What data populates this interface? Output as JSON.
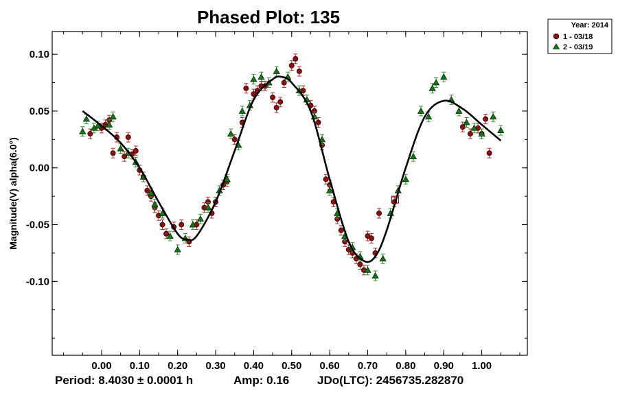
{
  "chart_data": {
    "type": "scatter",
    "title": "Phased Plot: 135",
    "xlabel": "",
    "ylabel": "Magnitude(V) alpha(6.0°)",
    "xlim": [
      -0.13,
      1.12
    ],
    "ylim": [
      0.12,
      -0.165
    ],
    "x_ticks": [
      0.0,
      0.1,
      0.2,
      0.3,
      0.4,
      0.5,
      0.6,
      0.7,
      0.8,
      0.9,
      1.0
    ],
    "x_tick_labels": [
      "0.00",
      "0.10",
      "0.20",
      "0.30",
      "0.40",
      "0.50",
      "0.60",
      "0.70",
      "0.80",
      "0.90",
      "1.00"
    ],
    "y_ticks": [
      0.1,
      0.05,
      0.0,
      -0.05,
      -0.1
    ],
    "y_tick_labels": [
      "0.10",
      "0.05",
      "0.00",
      "-0.05",
      "-0.10"
    ],
    "fit_curve": {
      "name": "Fourier fit",
      "x": [
        -0.05,
        0.0,
        0.05,
        0.1,
        0.15,
        0.2,
        0.225,
        0.25,
        0.3,
        0.35,
        0.4,
        0.45,
        0.475,
        0.5,
        0.55,
        0.6,
        0.65,
        0.69,
        0.72,
        0.75,
        0.8,
        0.85,
        0.9,
        0.95,
        1.0,
        1.05
      ],
      "y": [
        0.05,
        0.037,
        0.022,
        0.0,
        -0.03,
        -0.058,
        -0.063,
        -0.06,
        -0.03,
        0.015,
        0.06,
        0.078,
        0.08,
        0.075,
        0.05,
        -0.01,
        -0.065,
        -0.082,
        -0.078,
        -0.055,
        0.0,
        0.045,
        0.059,
        0.052,
        0.038,
        0.024
      ]
    },
    "series": [
      {
        "name": "1 - 03/18",
        "marker": "circle",
        "color": "#8b1010",
        "x": [
          -0.03,
          0.0,
          0.01,
          0.02,
          0.03,
          0.04,
          0.06,
          0.07,
          0.08,
          0.09,
          0.1,
          0.11,
          0.12,
          0.13,
          0.14,
          0.15,
          0.16,
          0.17,
          0.19,
          0.21,
          0.23,
          0.25,
          0.27,
          0.28,
          0.29,
          0.3,
          0.32,
          0.33,
          0.35,
          0.37,
          0.38,
          0.4,
          0.41,
          0.42,
          0.43,
          0.45,
          0.46,
          0.47,
          0.48,
          0.5,
          0.51,
          0.52,
          0.53,
          0.55,
          0.56,
          0.57,
          0.58,
          0.59,
          0.6,
          0.61,
          0.62,
          0.63,
          0.64,
          0.65,
          0.66,
          0.67,
          0.68,
          0.69,
          0.7,
          0.71,
          0.72,
          0.73,
          0.77,
          0.95,
          0.97,
          0.99,
          1.0,
          1.01,
          1.02
        ],
        "y": [
          0.03,
          0.035,
          0.038,
          0.042,
          0.013,
          0.027,
          0.01,
          0.027,
          0.012,
          0.015,
          -0.002,
          -0.008,
          -0.02,
          -0.025,
          -0.035,
          -0.042,
          -0.05,
          -0.058,
          -0.052,
          -0.05,
          -0.065,
          -0.05,
          -0.035,
          -0.03,
          -0.04,
          -0.03,
          -0.015,
          -0.012,
          0.025,
          0.04,
          0.07,
          0.065,
          0.068,
          0.072,
          0.072,
          0.062,
          0.053,
          0.058,
          0.075,
          0.09,
          0.096,
          0.085,
          0.068,
          0.055,
          0.05,
          0.04,
          0.02,
          -0.01,
          -0.015,
          -0.03,
          -0.045,
          -0.055,
          -0.065,
          -0.072,
          -0.075,
          -0.08,
          -0.085,
          -0.09,
          -0.06,
          -0.062,
          -0.075,
          -0.04,
          -0.03,
          0.036,
          0.03,
          0.035,
          0.03,
          0.043,
          0.013
        ]
      },
      {
        "name": "2 - 03/19",
        "marker": "triangle",
        "color": "#157515",
        "x": [
          -0.05,
          -0.04,
          -0.02,
          -0.01,
          0.02,
          0.03,
          0.05,
          0.07,
          0.09,
          0.11,
          0.13,
          0.14,
          0.16,
          0.18,
          0.2,
          0.22,
          0.24,
          0.26,
          0.28,
          0.31,
          0.33,
          0.34,
          0.36,
          0.37,
          0.39,
          0.4,
          0.42,
          0.44,
          0.46,
          0.49,
          0.52,
          0.54,
          0.56,
          0.58,
          0.6,
          0.62,
          0.64,
          0.66,
          0.68,
          0.7,
          0.72,
          0.74,
          0.76,
          0.78,
          0.8,
          0.82,
          0.84,
          0.86,
          0.87,
          0.88,
          0.9,
          0.92,
          0.94,
          0.96,
          0.98,
          1.0,
          1.03,
          1.05
        ],
        "y": [
          0.032,
          0.043,
          0.035,
          0.037,
          0.038,
          0.045,
          0.017,
          0.013,
          0.005,
          -0.008,
          -0.022,
          -0.032,
          -0.04,
          -0.06,
          -0.072,
          -0.062,
          -0.05,
          -0.045,
          -0.035,
          -0.02,
          -0.01,
          0.03,
          0.02,
          0.05,
          0.055,
          0.078,
          0.08,
          0.075,
          0.085,
          0.08,
          0.068,
          0.06,
          0.045,
          0.025,
          -0.02,
          -0.04,
          -0.06,
          -0.07,
          -0.078,
          -0.09,
          -0.095,
          -0.08,
          -0.04,
          -0.02,
          -0.01,
          0.01,
          0.05,
          0.045,
          0.07,
          0.075,
          0.08,
          0.06,
          0.05,
          0.04,
          0.035,
          0.03,
          0.045,
          0.033
        ]
      }
    ],
    "highlight_point": {
      "x": 0.772,
      "y": -0.028
    },
    "legend": {
      "position": "top-right",
      "header": "Year: 2014",
      "entries": [
        "1 - 03/18",
        "2 - 03/19"
      ]
    },
    "footer": {
      "period": "Period: 8.4030 ± 0.0001 h",
      "amp": "Amp: 0.16",
      "jdo": "JDo(LTC): 2456735.282870"
    }
  }
}
